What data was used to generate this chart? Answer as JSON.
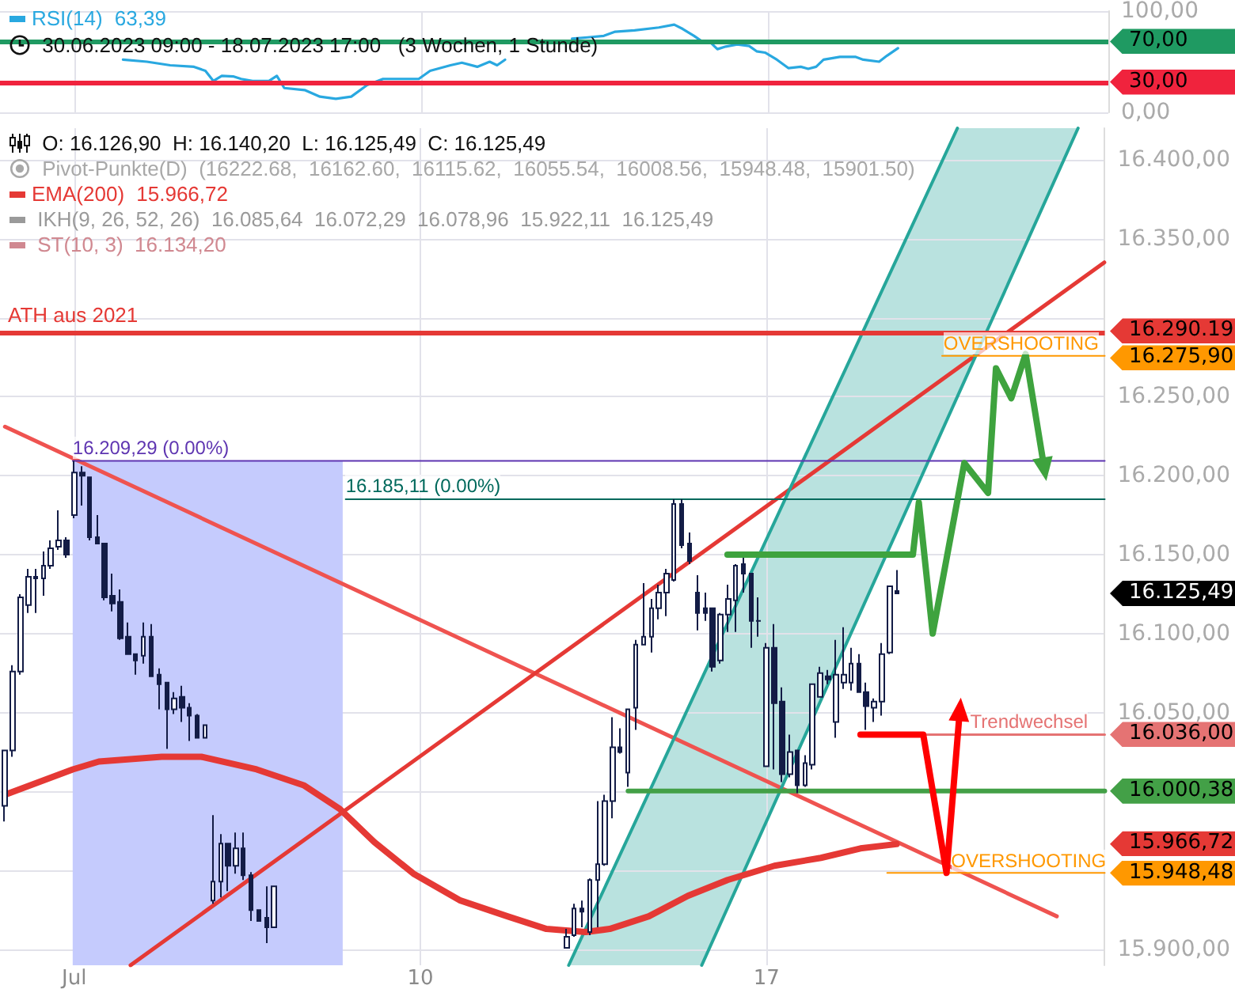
{
  "chart_data": [
    {
      "type": "line",
      "xlim": [
        1.5,
        23.84
      ],
      "ylim": [
        0,
        100
      ],
      "xticks": [
        3,
        10,
        17
      ],
      "yticks": [
        {
          "value": 100,
          "label": "100,00"
        },
        {
          "value": 0,
          "label": "0,00"
        }
      ],
      "tick_labels": "y",
      "grid": true,
      "legend": "top left",
      "series": [
        {
          "name": "RSI(14)",
          "color": "#29a8e0",
          "x": [
            3.98,
            4.46,
            4.93,
            5.41,
            5.64,
            5.8,
            5.97,
            6.2,
            6.36,
            6.59,
            6.92,
            7.08,
            7.23,
            7.64,
            7.95,
            8.27,
            8.58,
            8.9,
            9.22,
            9.94,
            10.17,
            10.58,
            10.81,
            11.12,
            11.37,
            11.52,
            11.68,
            12.33,
            13.03,
            13.34,
            13.67,
            13.9,
            14.29,
            14.78,
            15.09,
            15.26,
            15.49,
            15.65,
            15.8,
            15.96,
            16.13,
            16.36,
            16.6,
            16.75,
            16.92,
            17.16,
            17.39,
            17.64,
            17.79,
            17.95,
            18.1,
            18.43,
            18.74,
            18.9,
            19.22,
            19.38,
            19.6
          ],
          "values": [
            52,
            50,
            46.5,
            45,
            41,
            31,
            36,
            35.5,
            33,
            31,
            31,
            36,
            24,
            22,
            15.5,
            13.4,
            15.5,
            27,
            33,
            33,
            41,
            46.5,
            49,
            45,
            50,
            46.5,
            52,
            null,
            72.7,
            74,
            75.5,
            79.6,
            81,
            83.8,
            86.6,
            82.4,
            75.5,
            70,
            70,
            62.4,
            65,
            67,
            65.5,
            60.3,
            59,
            52,
            43.7,
            45,
            43,
            45,
            52,
            54.8,
            54.8,
            52,
            50,
            56,
            63.39
          ]
        }
      ],
      "ref_lines": [
        {
          "axis": "y",
          "value": 70,
          "color": "#1f9a62"
        },
        {
          "axis": "y",
          "value": 30,
          "color": "#f0233d"
        }
      ],
      "annotations": [
        "63,39",
        "30.06.2023 09:00 - 18.07.2023 17:00   (3 Wochen, 1 Stunde)",
        "70,00",
        "30,00"
      ]
    },
    {
      "type": "candlestick",
      "xlim": [
        1.5,
        23.84
      ],
      "ylim": [
        15890,
        16420
      ],
      "xticks": [
        {
          "value": 3,
          "label": "Jul"
        },
        10,
        17
      ],
      "yticks": [
        {
          "value": 15900,
          "label": "15.900,00"
        },
        {
          "value": 15950,
          "label": null
        },
        {
          "value": 16000,
          "label": null
        },
        {
          "value": 16050,
          "label": "16.050,00"
        },
        {
          "value": 16100,
          "label": "16.100,00"
        },
        {
          "value": 16150,
          "label": "16.150,00"
        },
        {
          "value": 16200,
          "label": "16.200,00"
        },
        {
          "value": 16250,
          "label": "16.250,00"
        },
        {
          "value": 16300,
          "label": null
        },
        {
          "value": 16350,
          "label": "16.350,00"
        },
        {
          "value": 16400,
          "label": "16.400,00"
        }
      ],
      "grid": true,
      "legend": "top left",
      "series": [
        {
          "type": "area",
          "color": "#c5cbfd",
          "x": [
            2.97,
            8.43
          ],
          "values": [
            16209.29,
            16209.29
          ]
        },
        {
          "type": "line",
          "color": "#ef5350",
          "x": [
            1.6,
            22.87
          ],
          "values": [
            16231,
            15921
          ]
        },
        {
          "type": "line",
          "color": "#e53935",
          "x": [
            4.14,
            23.83
          ],
          "values": [
            15890,
            16335
          ]
        },
        {
          "type": "line",
          "color": "#26a69a",
          "x": [
            13.0,
            20.86
          ],
          "values": [
            15890,
            16420
          ]
        },
        {
          "type": "line",
          "color": "#26a69a",
          "x": [
            15.69,
            23.3
          ],
          "values": [
            15890,
            16420
          ]
        },
        {
          "type": "line",
          "name": "EMA(200)",
          "color": "#e53935",
          "x": [
            1.6,
            2.97,
            3.5,
            4.77,
            5.57,
            6.69,
            7.64,
            8.37,
            9.07,
            9.86,
            10.81,
            11.76,
            12.55,
            13.34,
            13.83,
            14.62,
            15.41,
            16.21,
            17.16,
            18.1,
            18.9,
            19.63
          ],
          "values": [
            15998,
            16014,
            16019,
            16022,
            16022,
            16014,
            16004,
            15989,
            15968,
            15948,
            15931,
            15921,
            15913,
            15911,
            15913,
            15921,
            15934,
            15944,
            15953,
            15958,
            15964,
            15966.72
          ]
        },
        {
          "type": "line",
          "color": "#5e35b1",
          "x": [
            2.97,
            23.84
          ],
          "values": [
            16209.29,
            16209.29
          ]
        },
        {
          "type": "line",
          "color": "#00695c",
          "x": [
            8.49,
            23.84
          ],
          "values": [
            16185.11,
            16185.11
          ]
        },
        {
          "type": "line",
          "color": "#ff9800",
          "x": [
            20.55,
            23.84
          ],
          "values": [
            16275.9,
            16275.9
          ]
        },
        {
          "type": "line",
          "color": "#ff9800",
          "x": [
            19.44,
            23.84
          ],
          "values": [
            15948.48,
            15948.48
          ]
        },
        {
          "type": "line",
          "color": "#e57373",
          "x": [
            20.17,
            23.84
          ],
          "values": [
            16036,
            16036
          ]
        },
        {
          "type": "line",
          "color": "#43a047",
          "x": [
            14.2,
            23.84
          ],
          "values": [
            16000.38,
            16000.38
          ]
        },
        {
          "type": "line",
          "color": "#3ea33e",
          "x": [
            16.21,
            19.96,
            20.08,
            20.36,
            21.0,
            21.48,
            21.64,
            21.95,
            22.24,
            22.62
          ],
          "values": [
            16150,
            16150,
            16183,
            16100,
            16208,
            16189,
            16268,
            16249,
            16277,
            16204
          ]
        },
        {
          "type": "line",
          "color": "#ff0000",
          "x": [
            18.9,
            20.17,
            20.64,
            20.91
          ],
          "values": [
            16036,
            16036,
            15948.48,
            16052
          ]
        },
        {
          "color": "#131c46",
          "x": [
            1.6,
            1.76,
            1.91,
            2.07,
            2.22,
            2.38,
            2.53,
            2.69,
            2.84,
            3.0,
            3.16,
            3.31,
            3.47,
            3.62,
            3.78,
            3.93,
            4.09,
            4.24,
            4.4,
            4.56,
            4.71,
            4.87,
            5.02,
            5.18,
            5.33,
            5.49,
            5.64,
            5.8,
            5.96,
            6.11,
            6.27,
            6.42,
            6.58,
            6.73,
            6.89,
            7.04,
            12.96,
            13.11,
            13.27,
            13.42,
            13.58,
            13.73,
            13.89,
            14.04,
            14.2,
            14.36,
            14.51,
            14.67,
            14.82,
            14.98,
            15.13,
            15.29,
            15.44,
            15.6,
            15.76,
            15.91,
            16.07,
            16.22,
            16.38,
            16.53,
            16.69,
            16.84,
            17.0,
            17.16,
            17.31,
            17.47,
            17.62,
            17.78,
            17.93,
            18.09,
            18.24,
            18.4,
            18.56,
            18.71,
            18.87,
            19.02,
            19.18,
            19.33,
            19.49,
            19.64
          ],
          "ohlc": [
            [
              15991,
              16026,
              15981,
              16026
            ],
            [
              16026,
              16080,
              16022,
              16076
            ],
            [
              16076,
              16125,
              16074,
              16123
            ],
            [
              16118,
              16141,
              16113,
              16136
            ],
            [
              16136,
              16141,
              16113,
              16135
            ],
            [
              16135,
              16152,
              16124,
              16143
            ],
            [
              16143,
              16159,
              16141,
              16154
            ],
            [
              16155,
              16178,
              16153,
              16159
            ],
            [
              16159,
              16161,
              16148,
              16150
            ],
            [
              16175,
              16209.29,
              16173,
              16202
            ],
            [
              16202,
              16206,
              16181,
              16200
            ],
            [
              16199,
              16199,
              16159,
              16161
            ],
            [
              16161,
              16175,
              16157,
              16157
            ],
            [
              16157,
              16157,
              16121,
              16123
            ],
            [
              16124,
              16138,
              16114,
              16119
            ],
            [
              16120,
              16128,
              16096,
              16097
            ],
            [
              16098,
              16107,
              16087,
              16087
            ],
            [
              16087,
              16087,
              16074,
              16083
            ],
            [
              16086,
              16107,
              16081,
              16098
            ],
            [
              16098,
              16106,
              16073,
              16073
            ],
            [
              16074,
              16078,
              16052,
              16068
            ],
            [
              16069,
              16069,
              16027,
              16052
            ],
            [
              16052,
              16063,
              16049,
              16059
            ],
            [
              16060,
              16067,
              16044,
              16053
            ],
            [
              16053,
              16056,
              16032,
              16048
            ],
            [
              16048,
              16049,
              16034,
              16034
            ],
            [
              16034,
              16042,
              16034,
              16042
            ],
            [
              15931,
              15985,
              15929,
              15943
            ],
            [
              15943,
              15973,
              15933,
              15967
            ],
            [
              15967,
              15967,
              15937,
              15953
            ],
            [
              15953,
              15974,
              15948,
              15964
            ],
            [
              15964,
              15974,
              15944,
              15947
            ],
            [
              15947,
              15949,
              15918,
              15925
            ],
            [
              15925,
              15925,
              15918,
              15918
            ],
            [
              15920,
              15940,
              15904,
              15914
            ],
            [
              15914,
              15940,
              15914,
              15940
            ],
            [
              15901,
              15913,
              15901,
              15908
            ],
            [
              15909,
              15929,
              15908,
              15926
            ],
            [
              15926,
              15931,
              15914,
              15924
            ],
            [
              15911,
              15945,
              15909,
              15944
            ],
            [
              15944,
              15994,
              15914,
              15954
            ],
            [
              15954,
              15998,
              15953,
              15994
            ],
            [
              15994,
              16047,
              15983,
              16028
            ],
            [
              16028,
              16040,
              16024,
              16025
            ],
            [
              16012,
              16052,
              16003,
              16052
            ],
            [
              16053,
              16096,
              16039,
              16093
            ],
            [
              16093,
              16132,
              16093,
              16098
            ],
            [
              16098,
              16122,
              16088,
              16116
            ],
            [
              16116,
              16131,
              16109,
              16126
            ],
            [
              16126,
              16141,
              16111,
              16138
            ],
            [
              16134,
              16185.11,
              16133,
              16182
            ],
            [
              16182,
              16185,
              16154,
              16156
            ],
            [
              16157,
              16164,
              16144,
              16146
            ],
            [
              16126,
              16137,
              16102,
              16113
            ],
            [
              16116,
              16126,
              16108,
              16113
            ],
            [
              16116,
              16116,
              16076,
              16079
            ],
            [
              16083,
              16113,
              16081,
              16112
            ],
            [
              16112,
              16131,
              16101,
              16122
            ],
            [
              16121,
              16144,
              16101,
              16143
            ],
            [
              16144,
              16148,
              16126,
              16138
            ],
            [
              16138,
              16138,
              16091,
              16108
            ],
            [
              16108,
              16123,
              16098,
              16108
            ],
            [
              16016,
              16094,
              16016,
              16091
            ],
            [
              16091,
              16106,
              16014,
              16056
            ],
            [
              16057,
              16066,
              16006,
              16011
            ],
            [
              16011,
              16036,
              16009,
              16025
            ],
            [
              16026,
              16026,
              15999,
              16004
            ],
            [
              16004,
              16023,
              16003,
              16018
            ],
            [
              16017,
              16068,
              16014,
              16068
            ],
            [
              16060,
              16079,
              16060,
              16075
            ],
            [
              16073,
              16077,
              16068,
              16071
            ],
            [
              16044,
              16096,
              16034,
              16074
            ],
            [
              16069,
              16104,
              16065,
              16074
            ],
            [
              16069,
              16091,
              16064,
              16081
            ],
            [
              16081,
              16087,
              16063,
              16063
            ],
            [
              16063,
              16069,
              16039,
              16054
            ],
            [
              16053,
              16059,
              16044,
              16057
            ],
            [
              16057,
              16094,
              16048,
              16087
            ],
            [
              16088,
              16130,
              16087,
              16130
            ],
            [
              16126.9,
              16140.2,
              16125.49,
              16125.49
            ]
          ]
        }
      ],
      "ref_lines": [
        {
          "axis": "y",
          "value": 16290.19,
          "label": "ATH aus 2021",
          "color": "#e53935"
        }
      ],
      "annotations": [
        "O: 16.126,90  H: 16.140,20  L: 16.125,49  C: 16.125,49",
        "Pivot-Punkte(D)  (16222.68,  16162.60,  16115.62,  16055.54,  16008.56,  15948.48,  15901.50)",
        "15.966,72",
        "IKH(9, 26, 52, 26)  16.085,64  16.072,29  16.078,96  15.922,11  16.125,49",
        "ST(10, 3)  16.134,20",
        "16.290.19",
        "16.275,90",
        "16.125,49",
        "16.036,00",
        "16.000,38",
        "15.966,72",
        "15.948,48",
        {
          "text": "16.209,29 (0.00%)",
          "x": 2.97,
          "y": 16209.29
        },
        {
          "text": "16.185,11 (0.00%)",
          "x": 8.49,
          "y": 16185.11
        },
        {
          "text": "OVERSHOOTING",
          "x": 20.58,
          "y": 16275.9
        },
        {
          "text": "Trendwechsel",
          "x": 21.12,
          "y": 16036
        },
        {
          "text": "OVERSHOOTING",
          "x": 20.73,
          "y": 15948.48
        }
      ]
    }
  ]
}
